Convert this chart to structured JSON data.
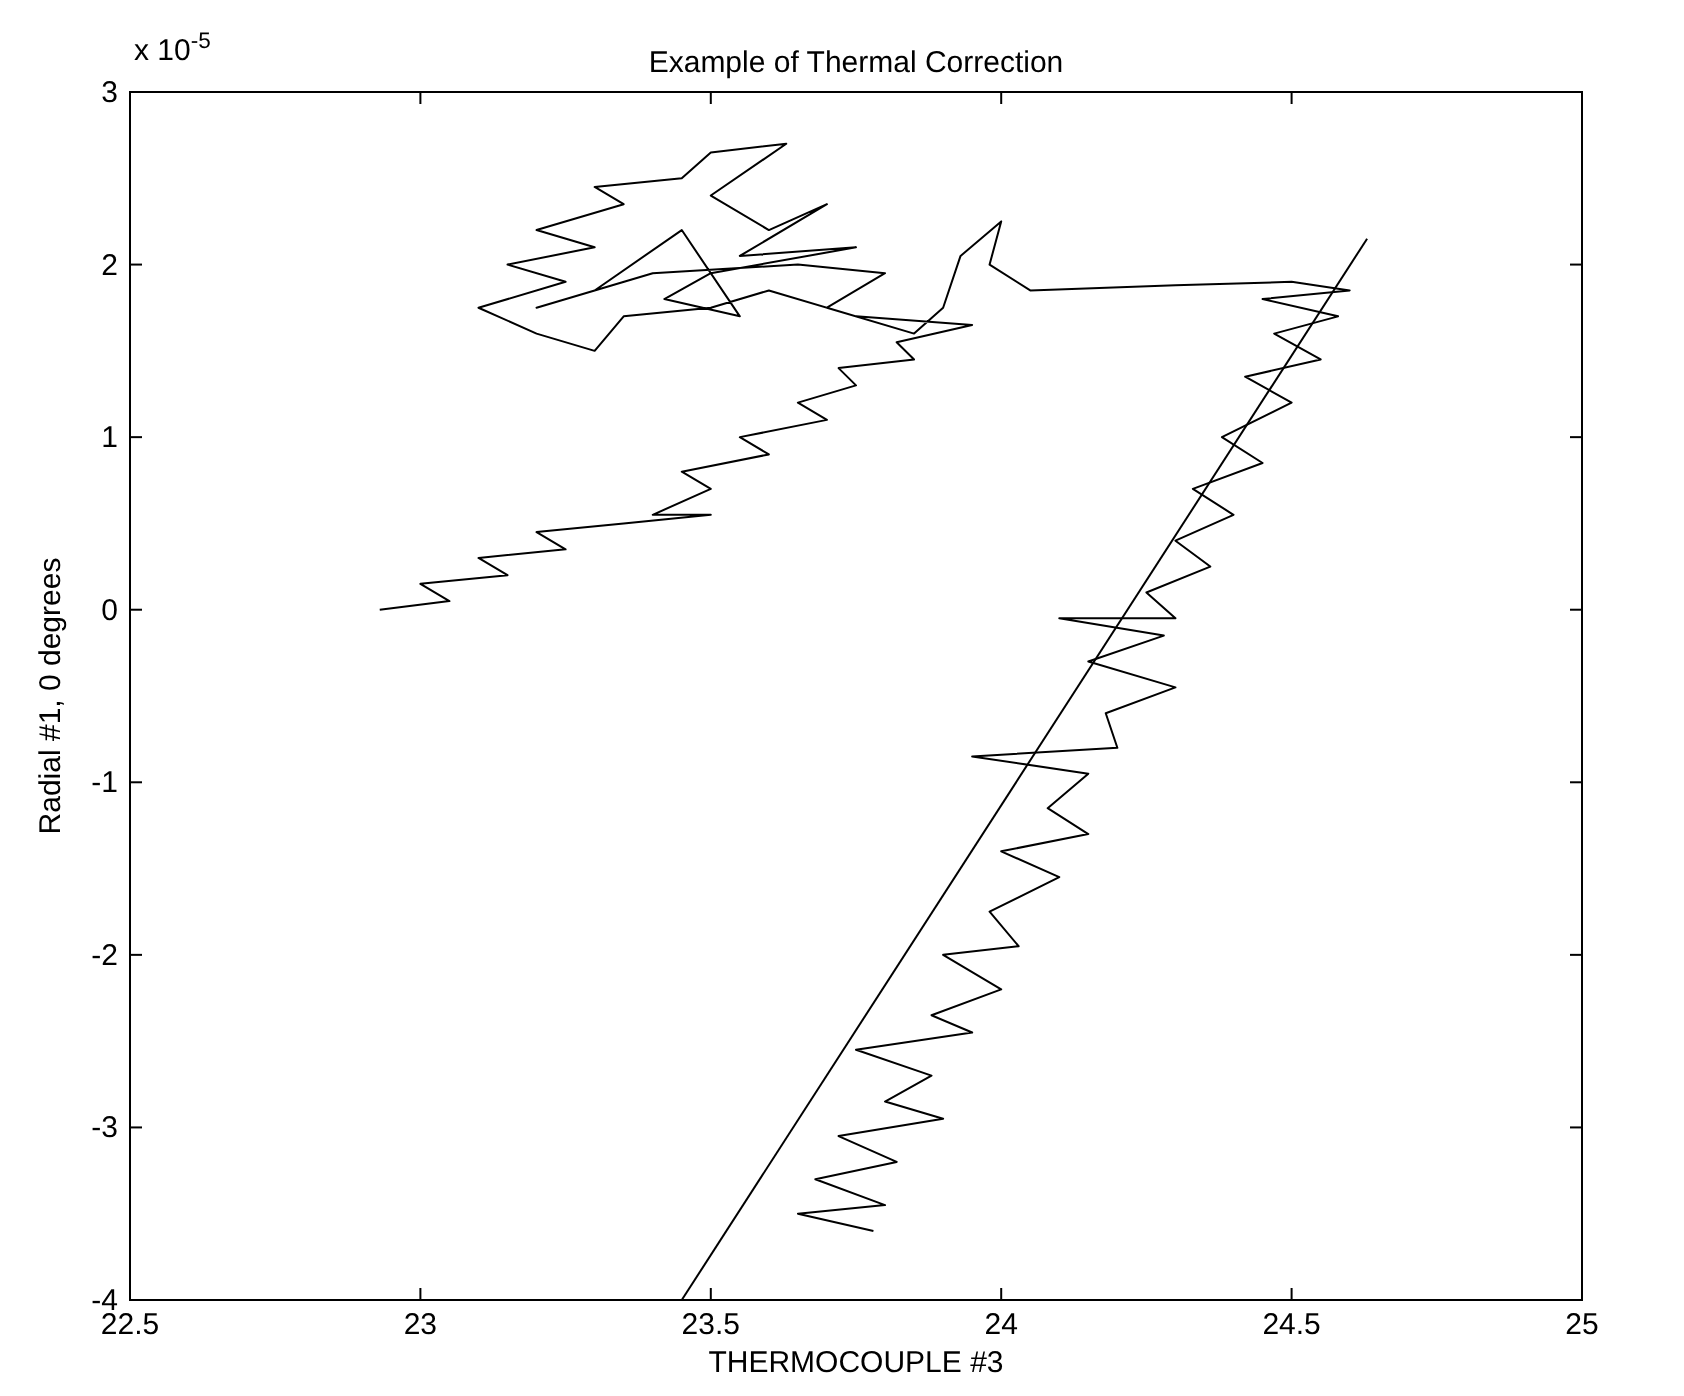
{
  "chart_data": {
    "type": "line",
    "title": "Example of Thermal Correction",
    "xlabel": "THERMOCOUPLE #3",
    "ylabel": "Radial #1, 0 degrees",
    "annotations": [
      "x 10$^{-5}$"
    ],
    "xlim": [
      22.5,
      25
    ],
    "xticks": [
      22.5,
      23,
      23.5,
      24,
      24.5,
      25
    ],
    "ylim": [
      -4,
      3
    ],
    "yticks": [
      -4,
      -3,
      -2,
      -1,
      0,
      1,
      2,
      3
    ],
    "grid": false,
    "line_style": "solid",
    "series": [
      {
        "color": "#000000",
        "x": [
          22.93,
          23.05,
          23.0,
          23.15,
          23.1,
          23.25,
          23.2,
          23.35,
          23.5,
          23.4,
          23.5,
          23.45,
          23.6,
          23.55,
          23.7,
          23.65,
          23.75,
          23.72,
          23.85,
          23.82,
          23.95,
          23.75,
          23.6,
          23.5,
          23.35,
          23.3,
          23.2,
          23.1,
          23.25,
          23.15,
          23.3,
          23.2,
          23.35,
          23.3,
          23.45,
          23.5,
          23.63,
          23.5,
          23.6,
          23.7,
          23.55,
          23.75,
          23.5,
          23.42,
          23.55,
          23.45,
          23.3,
          23.2,
          23.4,
          23.65,
          23.8,
          23.7,
          23.85,
          23.9,
          23.93,
          24.0,
          23.98,
          24.05,
          24.3,
          24.5,
          24.6,
          24.45,
          24.58,
          24.47,
          24.55,
          24.42,
          24.5,
          24.38,
          24.45,
          24.33,
          24.4,
          24.3,
          24.36,
          24.25,
          24.3,
          24.1,
          24.28,
          24.15,
          24.3,
          24.18,
          24.2,
          23.95,
          24.15,
          24.08,
          24.15,
          24.0,
          24.1,
          23.98,
          24.03,
          23.9,
          24.0,
          23.88,
          23.95,
          23.75,
          23.88,
          23.8,
          23.9,
          23.72,
          23.82,
          23.68,
          23.8,
          23.65,
          23.78
        ],
        "values": [
          0.0,
          0.05,
          0.15,
          0.2,
          0.3,
          0.35,
          0.45,
          0.5,
          0.55,
          0.55,
          0.7,
          0.8,
          0.9,
          1.0,
          1.1,
          1.2,
          1.3,
          1.4,
          1.45,
          1.55,
          1.65,
          1.7,
          1.85,
          1.75,
          1.7,
          1.5,
          1.6,
          1.75,
          1.9,
          2.0,
          2.1,
          2.2,
          2.35,
          2.45,
          2.5,
          2.65,
          2.7,
          2.4,
          2.2,
          2.35,
          2.05,
          2.1,
          1.95,
          1.8,
          1.7,
          2.2,
          1.85,
          1.75,
          1.95,
          2.0,
          1.95,
          1.75,
          1.6,
          1.75,
          2.05,
          2.25,
          2.0,
          1.85,
          1.88,
          1.9,
          1.85,
          1.8,
          1.7,
          1.6,
          1.45,
          1.35,
          1.2,
          1.0,
          0.85,
          0.7,
          0.55,
          0.4,
          0.25,
          0.1,
          -0.05,
          -0.05,
          -0.15,
          -0.3,
          -0.45,
          -0.6,
          -0.8,
          -0.85,
          -0.95,
          -1.15,
          -1.3,
          -1.4,
          -1.55,
          -1.75,
          -1.95,
          -2.0,
          -2.2,
          -2.35,
          -2.45,
          -2.55,
          -2.7,
          -2.85,
          -2.95,
          -3.05,
          -3.2,
          -3.3,
          -3.45,
          -3.5,
          -3.6
        ]
      },
      {
        "color": "#000000",
        "x": [
          23.45,
          24.63
        ],
        "values": [
          -4,
          2.15
        ]
      }
    ]
  }
}
